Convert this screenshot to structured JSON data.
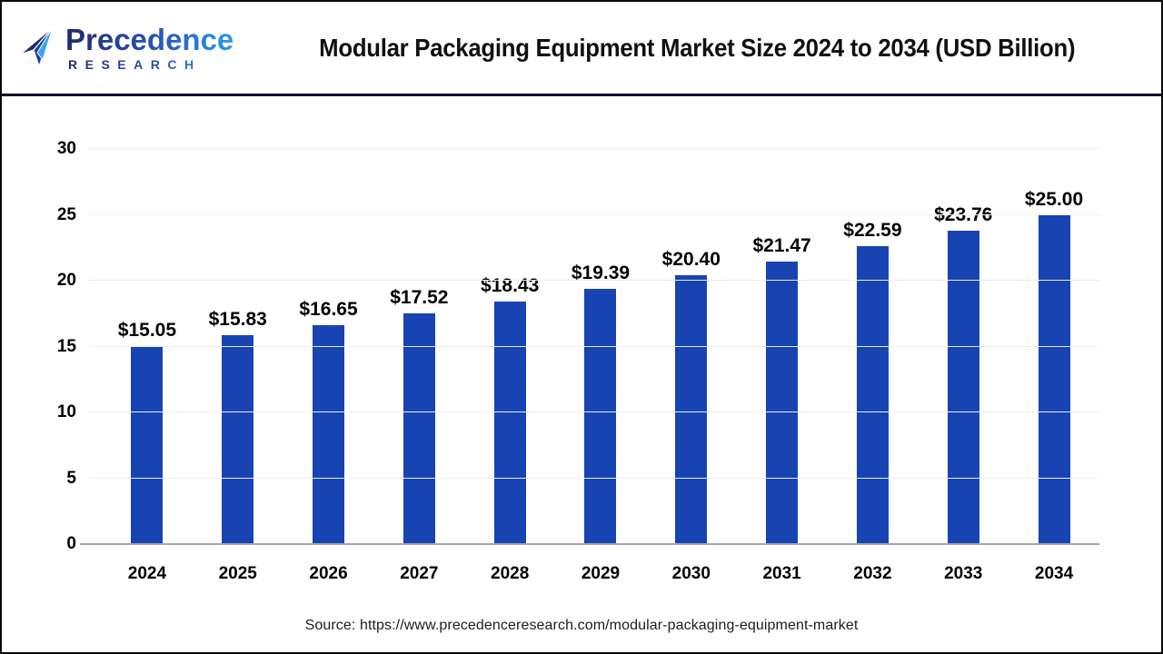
{
  "header": {
    "logo": {
      "name": "Precedence",
      "subtitle": "RESEARCH"
    },
    "title": "Modular Packaging Equipment Market Size 2024 to 2034 (USD Billion)"
  },
  "chart_data": {
    "type": "bar",
    "title": "Modular Packaging Equipment Market Size 2024 to 2034 (USD Billion)",
    "categories": [
      "2024",
      "2025",
      "2026",
      "2027",
      "2028",
      "2029",
      "2030",
      "2031",
      "2032",
      "2033",
      "2034"
    ],
    "values": [
      15.05,
      15.83,
      16.65,
      17.52,
      18.43,
      19.39,
      20.4,
      21.47,
      22.59,
      23.76,
      25.0
    ],
    "value_labels": [
      "$15.05",
      "$15.83",
      "$16.65",
      "$17.52",
      "$18.43",
      "$19.39",
      "$20.40",
      "$21.47",
      "$22.59",
      "$23.76",
      "$25.00"
    ],
    "unit": "USD Billion",
    "xlabel": "",
    "ylabel": "",
    "ylim": [
      0,
      30
    ],
    "yticks": [
      0,
      5,
      10,
      15,
      20,
      25,
      30
    ],
    "grid": true,
    "legend": "none",
    "bar_color": "#1743B3"
  },
  "footer": {
    "source": "Source: https://www.precedenceresearch.com/modular-packaging-equipment-market"
  },
  "colors": {
    "bar": "#1743B3",
    "divider": "#0A0C33",
    "baseline": "#A6A6A6",
    "gridline": "#ECECEC",
    "logo_dark": "#222A6E",
    "logo_mid": "#2B55B8",
    "logo_light": "#2E9BE6"
  }
}
